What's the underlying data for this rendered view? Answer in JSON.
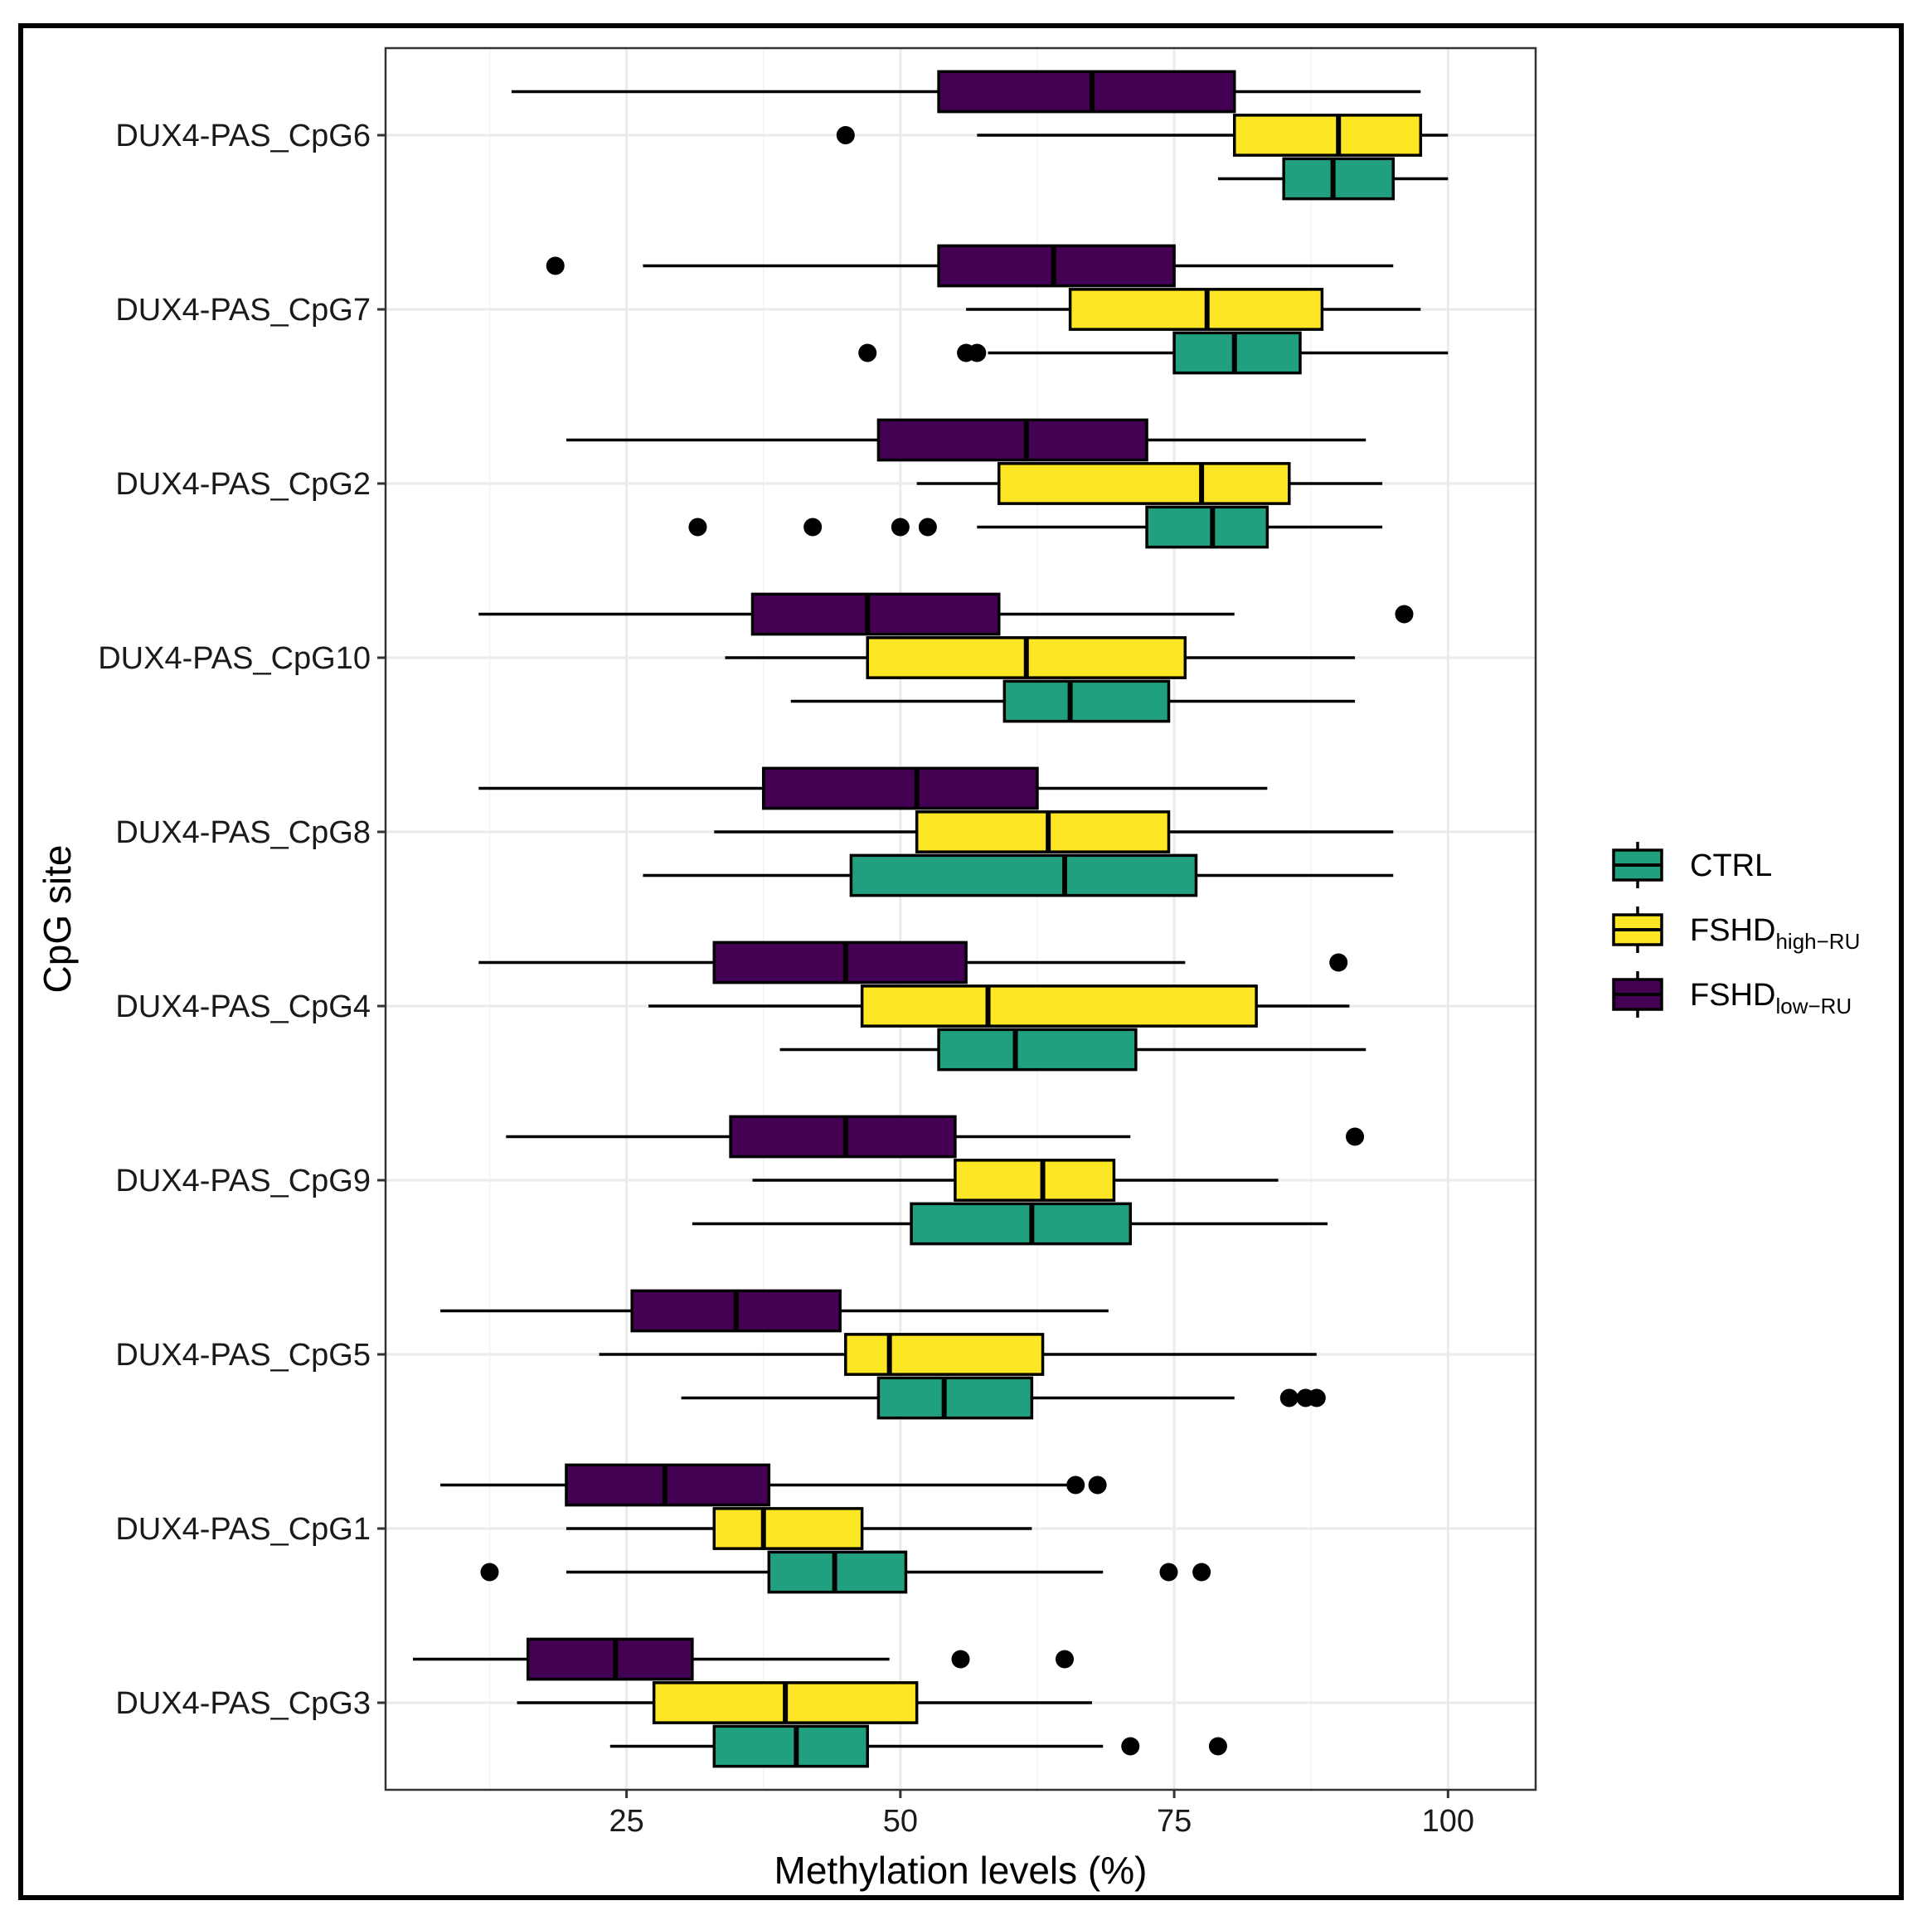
{
  "chart_data": {
    "type": "boxplot-horizontal",
    "xlabel": "Methylation levels (%)",
    "ylabel": "CpG site",
    "xlim": [
      3,
      108
    ],
    "xticks": [
      25,
      50,
      75,
      100
    ],
    "grid": true,
    "legend_position": "right",
    "legend": [
      {
        "key": "ctrl",
        "label": "CTRL",
        "sub": ""
      },
      {
        "key": "fshd_high",
        "label": "FSHD",
        "sub": "high−RU"
      },
      {
        "key": "fshd_low",
        "label": "FSHD",
        "sub": "low−RU"
      }
    ],
    "series_colors": {
      "fshd_low": "#440154",
      "fshd_high": "#fde725",
      "ctrl": "#21a080"
    },
    "series_order_top_to_bottom": [
      "fshd_low",
      "fshd_high",
      "ctrl"
    ],
    "categories": [
      "DUX4-PAS_CpG6",
      "DUX4-PAS_CpG7",
      "DUX4-PAS_CpG2",
      "DUX4-PAS_CpG10",
      "DUX4-PAS_CpG8",
      "DUX4-PAS_CpG4",
      "DUX4-PAS_CpG9",
      "DUX4-PAS_CpG5",
      "DUX4-PAS_CpG1",
      "DUX4-PAS_CpG3"
    ],
    "boxes": [
      {
        "fshd_low": {
          "min": 14.5,
          "q1": 53.5,
          "median": 67.5,
          "q3": 80.5,
          "max": 97.5,
          "outliers": []
        },
        "fshd_high": {
          "min": 57,
          "q1": 80.5,
          "median": 90,
          "q3": 97.5,
          "max": 100,
          "outliers": [
            45
          ]
        },
        "ctrl": {
          "min": 79,
          "q1": 85,
          "median": 89.5,
          "q3": 95,
          "max": 100,
          "outliers": []
        }
      },
      {
        "fshd_low": {
          "min": 26.5,
          "q1": 53.5,
          "median": 64,
          "q3": 75,
          "max": 95,
          "outliers": [
            18.5
          ]
        },
        "fshd_high": {
          "min": 56,
          "q1": 65.5,
          "median": 78,
          "q3": 88.5,
          "max": 97.5,
          "outliers": []
        },
        "ctrl": {
          "min": 58,
          "q1": 75,
          "median": 80.5,
          "q3": 86.5,
          "max": 100,
          "outliers": [
            47,
            56,
            57
          ]
        }
      },
      {
        "fshd_low": {
          "min": 19.5,
          "q1": 48,
          "median": 61.5,
          "q3": 72.5,
          "max": 92.5,
          "outliers": []
        },
        "fshd_high": {
          "min": 51.5,
          "q1": 59,
          "median": 77.5,
          "q3": 85.5,
          "max": 94,
          "outliers": []
        },
        "ctrl": {
          "min": 57,
          "q1": 72.5,
          "median": 78.5,
          "q3": 83.5,
          "max": 94,
          "outliers": [
            31.5,
            42,
            50,
            52.5
          ]
        }
      },
      {
        "fshd_low": {
          "min": 11.5,
          "q1": 36.5,
          "median": 47,
          "q3": 59,
          "max": 80.5,
          "outliers": [
            96
          ]
        },
        "fshd_high": {
          "min": 34,
          "q1": 47,
          "median": 61.5,
          "q3": 76,
          "max": 91.5,
          "outliers": []
        },
        "ctrl": {
          "min": 40,
          "q1": 59.5,
          "median": 65.5,
          "q3": 74.5,
          "max": 91.5,
          "outliers": []
        }
      },
      {
        "fshd_low": {
          "min": 11.5,
          "q1": 37.5,
          "median": 51.5,
          "q3": 62.5,
          "max": 83.5,
          "outliers": []
        },
        "fshd_high": {
          "min": 33,
          "q1": 51.5,
          "median": 63.5,
          "q3": 74.5,
          "max": 95,
          "outliers": []
        },
        "ctrl": {
          "min": 26.5,
          "q1": 45.5,
          "median": 65,
          "q3": 77,
          "max": 95,
          "outliers": []
        }
      },
      {
        "fshd_low": {
          "min": 11.5,
          "q1": 33,
          "median": 45,
          "q3": 56,
          "max": 76,
          "outliers": [
            90
          ]
        },
        "fshd_high": {
          "min": 27,
          "q1": 46.5,
          "median": 58,
          "q3": 82.5,
          "max": 91,
          "outliers": []
        },
        "ctrl": {
          "min": 39,
          "q1": 53.5,
          "median": 60.5,
          "q3": 71.5,
          "max": 92.5,
          "outliers": []
        }
      },
      {
        "fshd_low": {
          "min": 14,
          "q1": 34.5,
          "median": 45,
          "q3": 55,
          "max": 71,
          "outliers": [
            91.5
          ]
        },
        "fshd_high": {
          "min": 36.5,
          "q1": 55,
          "median": 63,
          "q3": 69.5,
          "max": 84.5,
          "outliers": []
        },
        "ctrl": {
          "min": 31,
          "q1": 51,
          "median": 62,
          "q3": 71,
          "max": 89,
          "outliers": []
        }
      },
      {
        "fshd_low": {
          "min": 8,
          "q1": 25.5,
          "median": 35,
          "q3": 44.5,
          "max": 69,
          "outliers": []
        },
        "fshd_high": {
          "min": 22.5,
          "q1": 45,
          "median": 49,
          "q3": 63,
          "max": 88,
          "outliers": []
        },
        "ctrl": {
          "min": 30,
          "q1": 48,
          "median": 54,
          "q3": 62,
          "max": 80.5,
          "outliers": [
            85.5,
            87,
            88
          ]
        }
      },
      {
        "fshd_low": {
          "min": 8,
          "q1": 19.5,
          "median": 28.5,
          "q3": 38,
          "max": 65.5,
          "outliers": [
            66,
            68
          ]
        },
        "fshd_high": {
          "min": 19.5,
          "q1": 33,
          "median": 37.5,
          "q3": 46.5,
          "max": 62,
          "outliers": []
        },
        "ctrl": {
          "min": 19.5,
          "q1": 38,
          "median": 44,
          "q3": 50.5,
          "max": 68.5,
          "outliers": [
            12.5,
            74.5,
            77.5
          ]
        }
      },
      {
        "fshd_low": {
          "min": 5.5,
          "q1": 16,
          "median": 24,
          "q3": 31,
          "max": 49,
          "outliers": [
            55.5,
            65
          ]
        },
        "fshd_high": {
          "min": 15,
          "q1": 27.5,
          "median": 39.5,
          "q3": 51.5,
          "max": 67.5,
          "outliers": []
        },
        "ctrl": {
          "min": 23.5,
          "q1": 33,
          "median": 40.5,
          "q3": 47,
          "max": 68.5,
          "outliers": [
            71,
            79
          ]
        }
      }
    ]
  }
}
